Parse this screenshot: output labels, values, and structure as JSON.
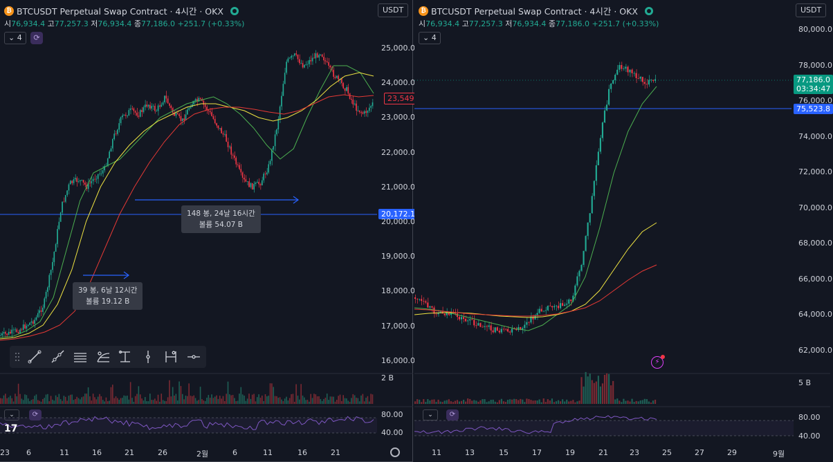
{
  "left": {
    "header": {
      "title": "BTCUSDT Perpetual Swap Contract · 4시간 · OKX",
      "coin": "₿"
    },
    "ohlc": {
      "o_label": "시",
      "o": "76,934.4",
      "h_label": "고",
      "h": "77,257.3",
      "l_label": "저",
      "l": "76,934.4",
      "c_label": "종",
      "c": "77,186.0",
      "change": "+251.7 (+0.33%)"
    },
    "currency": "USDT",
    "indicators_count": "4",
    "price_axis": [
      "25,000.0",
      "24,000.0",
      "23,000.0",
      "22,000.0",
      "21,000.0",
      "20,000.0",
      "19,000.0",
      "18,000.0",
      "17,000.0",
      "16,000.0"
    ],
    "price_tag_current": "23,549.0",
    "price_tag_line": "20,172.1",
    "time_axis": [
      "23",
      "6",
      "11",
      "16",
      "21",
      "26",
      "2월",
      "6",
      "11",
      "16",
      "21"
    ],
    "measure1": {
      "line1": "148 봉, 24날 16시간",
      "line2": "볼륨 54.07 B"
    },
    "measure2": {
      "line1": "39 봉, 6날 12시간",
      "line2": "볼륨 19.12 B"
    },
    "volume_label": "2 B",
    "rsi_axis": [
      "80.00",
      "40.00"
    ],
    "logo": "17"
  },
  "right": {
    "header": {
      "title": "BTCUSDT Perpetual Swap Contract · 4시간 · OKX",
      "coin": "₿"
    },
    "ohlc": {
      "o_label": "시",
      "o": "76,934.4",
      "h_label": "고",
      "h": "77,257.3",
      "l_label": "저",
      "l": "76,934.4",
      "c_label": "종",
      "c": "77,186.0",
      "change": "+251.7 (+0.33%)"
    },
    "currency": "USDT",
    "indicators_count": "4",
    "price_axis": [
      "80,000.0",
      "78,000.0",
      "76,000.0",
      "74,000.0",
      "72,000.0",
      "70,000.0",
      "68,000.0",
      "66,000.0",
      "64,000.0",
      "62,000.0"
    ],
    "price_tag_current": "77,186.0",
    "price_tag_countdown": "03:34:47",
    "price_tag_line": "75,523.8",
    "time_axis": [
      "11",
      "13",
      "15",
      "17",
      "19",
      "21",
      "23",
      "25",
      "27",
      "29",
      "9월"
    ],
    "volume_label": "5 B",
    "rsi_axis": [
      "80.00",
      "40.00"
    ]
  },
  "colors": {
    "up": "#22ab94",
    "down": "#f23645",
    "blue_line": "#2962ff",
    "ma_yellow": "#f0e442",
    "ma_red": "#e53935",
    "ma_green": "#4caf50",
    "rsi": "#7e57c2"
  },
  "toolbar_icons": [
    "drag-handle-icon",
    "trend-line-icon",
    "ray-icon",
    "parallel-channel-icon",
    "fib-icon",
    "date-range-icon",
    "vertical-line-icon",
    "date-price-range-icon",
    "horizontal-ray-icon"
  ]
}
